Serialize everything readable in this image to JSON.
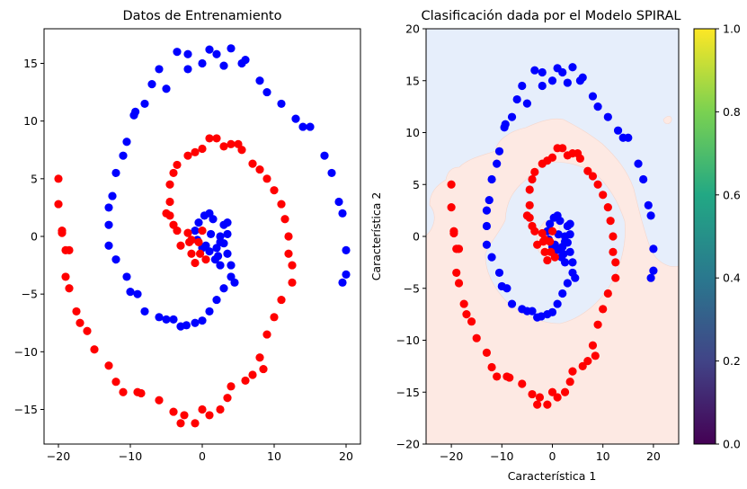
{
  "chart_data": [
    {
      "type": "scatter",
      "title": "Datos de Entrenamiento",
      "xlabel": "",
      "ylabel": "",
      "xlim": [
        -22,
        22
      ],
      "ylim": [
        -18,
        18
      ],
      "xticks": [
        -20,
        -10,
        0,
        10,
        20
      ],
      "yticks": [
        -15,
        -10,
        -5,
        0,
        5,
        10,
        15
      ],
      "grid": false,
      "series": [
        {
          "color": "#0000ff",
          "points": [
            [
              0.5,
              -0.8
            ],
            [
              1.2,
              0.2
            ],
            [
              1.5,
              1.5
            ],
            [
              1,
              2
            ],
            [
              0.3,
              1.8
            ],
            [
              -0.5,
              1.2
            ],
            [
              -1,
              0.5
            ],
            [
              -0.7,
              -0.3
            ],
            [
              0,
              -1
            ],
            [
              1,
              -1.3
            ],
            [
              2,
              -1
            ],
            [
              2.5,
              0
            ],
            [
              3,
              1
            ],
            [
              3.5,
              1.2
            ],
            [
              3.5,
              0.2
            ],
            [
              3,
              -0.6
            ],
            [
              2.2,
              -1.7
            ],
            [
              3.5,
              -1.5
            ],
            [
              4,
              -2.5
            ],
            [
              4,
              -3.5
            ],
            [
              3,
              -4.5
            ],
            [
              2,
              -5.5
            ],
            [
              1,
              -6.5
            ],
            [
              0,
              -7.3
            ],
            [
              -1,
              -7.5
            ],
            [
              -2.2,
              -7.7
            ],
            [
              -3,
              -7.8
            ],
            [
              -4,
              -7.2
            ],
            [
              -5,
              -7.2
            ],
            [
              -6,
              -7
            ],
            [
              -8,
              -6.5
            ],
            [
              -9,
              -5
            ],
            [
              -10,
              -4.8
            ],
            [
              -10.5,
              -3.5
            ],
            [
              -12,
              -2
            ],
            [
              -13,
              -0.8
            ],
            [
              -13,
              1
            ],
            [
              -13,
              2.5
            ],
            [
              -12.5,
              3.5
            ],
            [
              -12,
              5.5
            ],
            [
              -11,
              7
            ],
            [
              -10.5,
              8.2
            ],
            [
              -9.5,
              10.5
            ],
            [
              -9.3,
              10.8
            ],
            [
              -8,
              11.5
            ],
            [
              -7,
              13.2
            ],
            [
              -6,
              14.5
            ],
            [
              -5,
              12.8
            ],
            [
              -3.5,
              16
            ],
            [
              -2,
              14.5
            ],
            [
              -2,
              15.8
            ],
            [
              0,
              15
            ],
            [
              1,
              16.2
            ],
            [
              2,
              15.8
            ],
            [
              3,
              14.8
            ],
            [
              4,
              16.3
            ],
            [
              5.5,
              15
            ],
            [
              6,
              15.3
            ],
            [
              8,
              13.5
            ],
            [
              9,
              12.5
            ],
            [
              11,
              11.5
            ],
            [
              13,
              10.2
            ],
            [
              14,
              9.5
            ],
            [
              15,
              9.5
            ],
            [
              17,
              7
            ],
            [
              18,
              5.5
            ],
            [
              19,
              3
            ],
            [
              19.5,
              2
            ],
            [
              20,
              -1.2
            ],
            [
              20,
              -3.3
            ],
            [
              19.5,
              -4
            ],
            [
              2.5,
              -0.5
            ],
            [
              1.8,
              -2
            ],
            [
              2.5,
              -2.5
            ],
            [
              4.5,
              -4
            ]
          ]
        },
        {
          "color": "#ff0000",
          "points": [
            [
              0,
              0.5
            ],
            [
              -0.5,
              -0.5
            ],
            [
              -0.3,
              -1.5
            ],
            [
              0.5,
              -2
            ],
            [
              -1,
              -2.3
            ],
            [
              -1.5,
              -1.5
            ],
            [
              -1.8,
              -0.5
            ],
            [
              -2,
              0.3
            ],
            [
              -3,
              -0.8
            ],
            [
              -3.5,
              0.5
            ],
            [
              -4,
              1
            ],
            [
              -4.5,
              1.8
            ],
            [
              -5,
              2
            ],
            [
              -4.5,
              3
            ],
            [
              -4.5,
              4.5
            ],
            [
              -4,
              5.5
            ],
            [
              -3.5,
              6.2
            ],
            [
              -2,
              7
            ],
            [
              -1,
              7.3
            ],
            [
              0,
              7.6
            ],
            [
              1,
              8.5
            ],
            [
              2,
              8.5
            ],
            [
              3,
              7.8
            ],
            [
              4,
              8
            ],
            [
              5,
              8
            ],
            [
              5.5,
              7.5
            ],
            [
              7,
              6.3
            ],
            [
              8,
              5.8
            ],
            [
              9,
              5
            ],
            [
              10,
              4
            ],
            [
              11,
              2.8
            ],
            [
              11.5,
              1.5
            ],
            [
              12,
              0
            ],
            [
              12,
              -1.5
            ],
            [
              12.5,
              -2.5
            ],
            [
              12.5,
              -4
            ],
            [
              11,
              -5.5
            ],
            [
              10,
              -7
            ],
            [
              9,
              -8.5
            ],
            [
              8,
              -10.5
            ],
            [
              8.5,
              -11.5
            ],
            [
              7,
              -12
            ],
            [
              6,
              -12.5
            ],
            [
              4,
              -13
            ],
            [
              3.5,
              -14
            ],
            [
              2.5,
              -15
            ],
            [
              1,
              -15.5
            ],
            [
              0,
              -15
            ],
            [
              -1,
              -16.2
            ],
            [
              -2.5,
              -15.5
            ],
            [
              -3,
              -16.2
            ],
            [
              -4,
              -15.2
            ],
            [
              -6,
              -14.2
            ],
            [
              -8.5,
              -13.6
            ],
            [
              -9,
              -13.5
            ],
            [
              -11,
              -13.5
            ],
            [
              -12,
              -12.6
            ],
            [
              -13,
              -11.2
            ],
            [
              -15,
              -9.8
            ],
            [
              -16,
              -8.2
            ],
            [
              -17,
              -7.5
            ],
            [
              -17.5,
              -6.5
            ],
            [
              -18.5,
              -4.5
            ],
            [
              -19,
              -3.5
            ],
            [
              -19,
              -1.2
            ],
            [
              -19.5,
              0.5
            ],
            [
              -20,
              2.8
            ],
            [
              -20,
              5
            ],
            [
              -19.5,
              0.3
            ],
            [
              -18.5,
              -1.2
            ],
            [
              -1.5,
              -0.3
            ]
          ]
        }
      ]
    },
    {
      "type": "scatter",
      "title": "Clasificación dada por el Modelo SPIRAL",
      "xlabel": "Característica 1",
      "ylabel": "Característica 2",
      "xlim": [
        -25,
        25
      ],
      "ylim": [
        -20,
        20
      ],
      "xticks": [
        -20,
        -10,
        0,
        10,
        20
      ],
      "yticks": [
        -20,
        -15,
        -10,
        -5,
        0,
        5,
        10,
        15,
        20
      ],
      "background_regions": {
        "class0_color": "#e6eefb",
        "class1_color": "#fde9e3"
      },
      "colorbar": {
        "ticks": [
          "0.0",
          "0.2",
          "0.4",
          "0.6",
          "0.8",
          "1.0"
        ],
        "colormap": "viridis"
      },
      "grid": false
    }
  ]
}
